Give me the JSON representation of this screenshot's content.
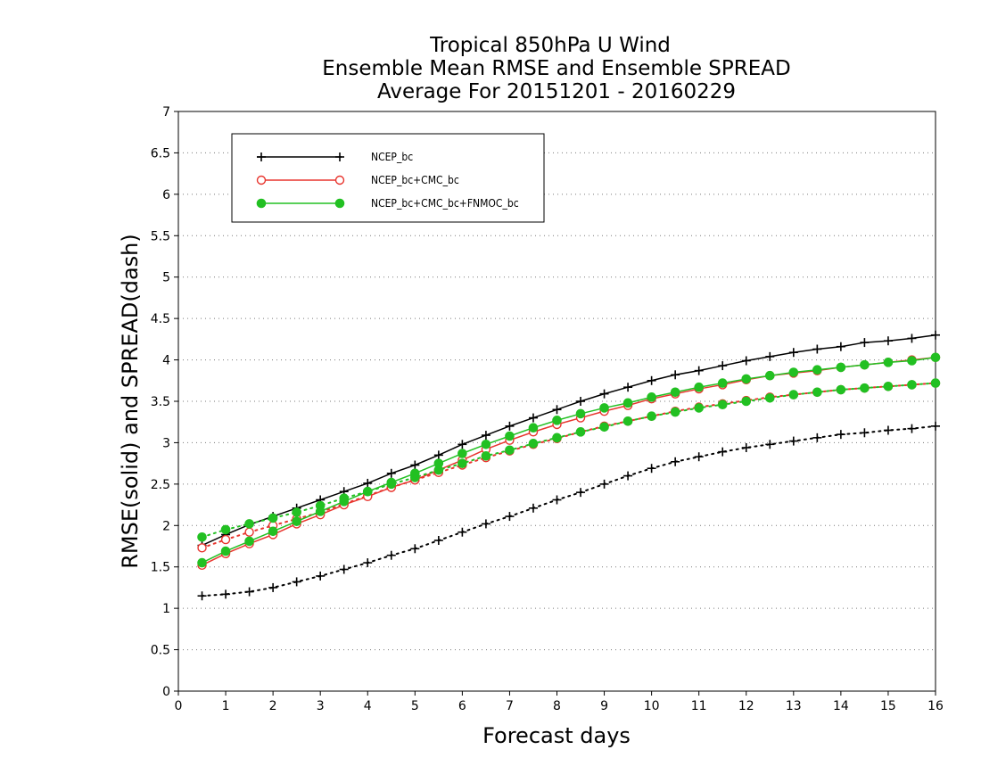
{
  "chart_data": {
    "type": "line",
    "title": [
      "Tropical 850hPa U Wind",
      "Ensemble Mean RMSE and Ensemble SPREAD",
      "Average For 20151201 - 20160229"
    ],
    "xlabel": "Forecast days",
    "ylabel": "RMSE(solid) and SPREAD(dash)",
    "xlim": [
      0,
      16
    ],
    "ylim": [
      0,
      7
    ],
    "xticks": [
      0,
      1,
      2,
      3,
      4,
      5,
      6,
      7,
      8,
      9,
      10,
      11,
      12,
      13,
      14,
      15,
      16
    ],
    "yticks": [
      0,
      0.5,
      1,
      1.5,
      2,
      2.5,
      3,
      3.5,
      4,
      4.5,
      5,
      5.5,
      6,
      6.5,
      7
    ],
    "ytick_labels": [
      "0",
      "0.5",
      "1",
      "1.5",
      "2",
      "2.5",
      "3",
      "3.5",
      "4",
      "4.5",
      "5",
      "5.5",
      "6",
      "6.5",
      "7"
    ],
    "grid": "horizontal dotted",
    "legend_position": "top-left",
    "x": [
      0.5,
      1,
      1.5,
      2,
      2.5,
      3,
      3.5,
      4,
      4.5,
      5,
      5.5,
      6,
      6.5,
      7,
      7.5,
      8,
      8.5,
      9,
      9.5,
      10,
      10.5,
      11,
      11.5,
      12,
      12.5,
      13,
      13.5,
      14,
      14.5,
      15,
      15.5,
      16
    ],
    "series": [
      {
        "name": "NCEP_bc",
        "color": "#000000",
        "marker": "plus",
        "rmse": [
          1.76,
          1.89,
          2.01,
          2.11,
          2.21,
          2.31,
          2.41,
          2.51,
          2.63,
          2.73,
          2.85,
          2.98,
          3.09,
          3.2,
          3.3,
          3.4,
          3.5,
          3.59,
          3.67,
          3.75,
          3.82,
          3.87,
          3.93,
          3.99,
          4.04,
          4.09,
          4.13,
          4.16,
          4.21,
          4.23,
          4.26,
          4.3
        ],
        "spread": [
          1.15,
          1.17,
          1.2,
          1.25,
          1.32,
          1.39,
          1.47,
          1.55,
          1.64,
          1.72,
          1.82,
          1.92,
          2.02,
          2.11,
          2.21,
          2.31,
          2.4,
          2.5,
          2.6,
          2.69,
          2.77,
          2.83,
          2.89,
          2.94,
          2.98,
          3.02,
          3.06,
          3.1,
          3.12,
          3.15,
          3.17,
          3.2
        ]
      },
      {
        "name": "NCEP_bc+CMC_bc",
        "color": "#e8352e",
        "marker": "open-circle",
        "rmse": [
          1.52,
          1.66,
          1.78,
          1.89,
          2.02,
          2.13,
          2.25,
          2.35,
          2.46,
          2.55,
          2.67,
          2.79,
          2.92,
          3.03,
          3.13,
          3.22,
          3.3,
          3.38,
          3.45,
          3.53,
          3.59,
          3.65,
          3.7,
          3.76,
          3.81,
          3.84,
          3.87,
          3.91,
          3.94,
          3.97,
          4.0,
          4.03
        ],
        "spread": [
          1.73,
          1.83,
          1.92,
          2.0,
          2.08,
          2.16,
          2.26,
          2.36,
          2.46,
          2.55,
          2.64,
          2.73,
          2.82,
          2.9,
          2.98,
          3.05,
          3.13,
          3.2,
          3.26,
          3.32,
          3.38,
          3.43,
          3.47,
          3.51,
          3.55,
          3.58,
          3.61,
          3.64,
          3.66,
          3.68,
          3.7,
          3.72
        ]
      },
      {
        "name": "NCEP_bc+CMC_bc+FNMOC_bc",
        "color": "#22c022",
        "marker": "filled-circle",
        "rmse": [
          1.55,
          1.69,
          1.81,
          1.93,
          2.05,
          2.17,
          2.29,
          2.41,
          2.52,
          2.63,
          2.75,
          2.87,
          2.98,
          3.08,
          3.18,
          3.27,
          3.35,
          3.42,
          3.48,
          3.55,
          3.61,
          3.67,
          3.72,
          3.77,
          3.81,
          3.85,
          3.88,
          3.91,
          3.94,
          3.97,
          3.99,
          4.03
        ],
        "spread": [
          1.86,
          1.95,
          2.02,
          2.09,
          2.16,
          2.24,
          2.33,
          2.41,
          2.5,
          2.58,
          2.67,
          2.75,
          2.84,
          2.91,
          2.99,
          3.06,
          3.13,
          3.19,
          3.26,
          3.32,
          3.37,
          3.42,
          3.46,
          3.5,
          3.54,
          3.58,
          3.61,
          3.64,
          3.66,
          3.68,
          3.7,
          3.72
        ]
      }
    ]
  }
}
